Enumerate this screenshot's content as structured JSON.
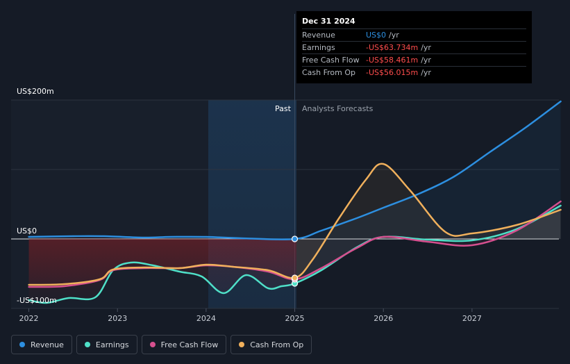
{
  "tooltip": {
    "date": "Dec 31 2024",
    "rows": [
      {
        "label": "Revenue",
        "value": "US$0",
        "unit": "/yr",
        "color": "#2d8fe0"
      },
      {
        "label": "Earnings",
        "value": "-US$63.734m",
        "unit": "/yr",
        "color": "#ff4d4d"
      },
      {
        "label": "Free Cash Flow",
        "value": "-US$58.461m",
        "unit": "/yr",
        "color": "#ff4d4d"
      },
      {
        "label": "Cash From Op",
        "value": "-US$56.015m",
        "unit": "/yr",
        "color": "#ff4d4d"
      }
    ]
  },
  "labels": {
    "past": "Past",
    "forecast": "Analysts Forecasts",
    "y_top": "US$200m",
    "y_zero": "US$0",
    "y_bottom": "-US$100m"
  },
  "chart_data": {
    "type": "line",
    "ylim": [
      -100,
      200
    ],
    "xlim": [
      2021.8,
      2027.98
    ],
    "x_ticks": [
      "2022",
      "2023",
      "2024",
      "2025",
      "2026",
      "2027"
    ],
    "series": [
      {
        "name": "Revenue",
        "color": "#2d8fe0",
        "x": [
          2022.0,
          2022.5,
          2022.85,
          2023.3,
          2023.6,
          2024.0,
          2024.4,
          2025.0,
          2025.3,
          2025.7,
          2026.0,
          2026.4,
          2026.8,
          2027.2,
          2027.6,
          2028.0
        ],
        "y": [
          3,
          4,
          4,
          2,
          3,
          3,
          1,
          0,
          12,
          30,
          45,
          65,
          90,
          125,
          160,
          198
        ]
      },
      {
        "name": "Earnings",
        "color": "#4fe0c8",
        "x": [
          2022.0,
          2022.2,
          2022.45,
          2022.75,
          2022.95,
          2023.15,
          2023.4,
          2023.7,
          2023.95,
          2024.2,
          2024.45,
          2024.7,
          2024.85,
          2025.0,
          2025.3,
          2025.7,
          2026.0,
          2026.5,
          2027.0,
          2027.5,
          2028.0
        ],
        "y": [
          -88,
          -92,
          -85,
          -84,
          -45,
          -34,
          -38,
          -47,
          -54,
          -78,
          -52,
          -71,
          -68,
          -64,
          -45,
          -12,
          3,
          -1,
          -2,
          14,
          48
        ]
      },
      {
        "name": "Free Cash Flow",
        "color": "#d6508f",
        "x": [
          2022.0,
          2022.4,
          2022.8,
          2022.95,
          2023.3,
          2023.7,
          2024.0,
          2024.3,
          2024.7,
          2025.0,
          2025.3,
          2025.7,
          2026.0,
          2026.5,
          2027.0,
          2027.5,
          2028.0
        ],
        "y": [
          -69,
          -68,
          -59,
          -45,
          -42,
          -42,
          -38,
          -40,
          -47,
          -58,
          -42,
          -13,
          3,
          -4,
          -9,
          12,
          54
        ]
      },
      {
        "name": "Cash From Op",
        "color": "#f0b05c",
        "x": [
          2022.0,
          2022.4,
          2022.8,
          2022.95,
          2023.3,
          2023.7,
          2024.0,
          2024.3,
          2024.7,
          2025.0,
          2025.2,
          2025.5,
          2025.8,
          2026.0,
          2026.3,
          2026.7,
          2027.0,
          2027.5,
          2028.0
        ],
        "y": [
          -66,
          -65,
          -58,
          -44,
          -41,
          -42,
          -37,
          -40,
          -45,
          -56,
          -30,
          30,
          85,
          108,
          70,
          10,
          8,
          20,
          42
        ]
      }
    ]
  },
  "legend": [
    {
      "label": "Revenue",
      "color": "#2d8fe0"
    },
    {
      "label": "Earnings",
      "color": "#4fe0c8"
    },
    {
      "label": "Free Cash Flow",
      "color": "#d6508f"
    },
    {
      "label": "Cash From Op",
      "color": "#f0b05c"
    }
  ]
}
